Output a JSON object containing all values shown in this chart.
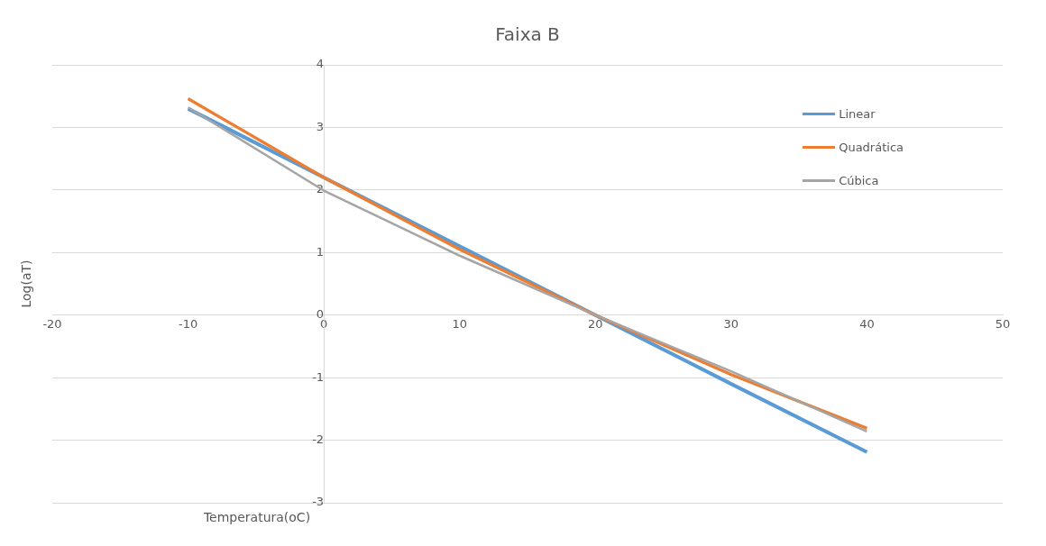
{
  "chart_data": {
    "type": "line",
    "title": "Faixa B",
    "xlabel": "Temperatura(oC)",
    "ylabel": "Log(aT)",
    "x": [
      -10,
      0,
      10,
      20,
      30,
      40
    ],
    "series": [
      {
        "name": "Linear",
        "color": "#5b9bd5",
        "values": [
          3.3,
          2.2,
          1.1,
          0,
          -1.1,
          -2.19
        ]
      },
      {
        "name": "Quadrática",
        "color": "#ed7d31",
        "values": [
          3.46,
          2.2,
          1.05,
          0,
          -0.95,
          -1.81
        ]
      },
      {
        "name": "Cúbica",
        "color": "#a5a5a5",
        "values": [
          3.32,
          1.99,
          0.95,
          0,
          -0.9,
          -1.86
        ]
      }
    ],
    "xlim": [
      -20,
      50
    ],
    "xticks": [
      -20,
      -10,
      0,
      10,
      20,
      30,
      40,
      50
    ],
    "ylim": [
      -3,
      4
    ],
    "yticks": [
      -3,
      -2,
      -1,
      0,
      1,
      2,
      3,
      4
    ],
    "grid": "y",
    "legend": "top right",
    "marker": "none",
    "line_style": "solid"
  }
}
